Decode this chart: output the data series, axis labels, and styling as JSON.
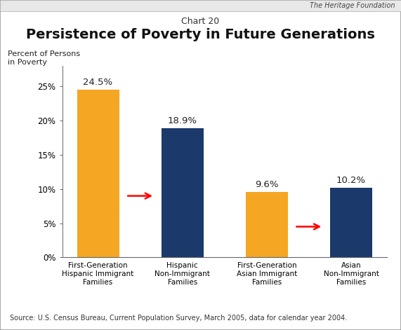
{
  "chart_label": "Chart 20",
  "title": "Persistence of Poverty in Future Generations",
  "ylabel_line1": "Percent of Persons",
  "ylabel_line2": "in Poverty",
  "categories": [
    "First-Generation\nHispanic Immigrant\nFamilies",
    "Hispanic\nNon-Immigrant\nFamilies",
    "First-Generation\nAsian Immigrant\nFamilies",
    "Asian\nNon-Immigrant\nFamilies"
  ],
  "values": [
    24.5,
    18.9,
    9.6,
    10.2
  ],
  "bar_colors": [
    "#F5A623",
    "#1B3A6B",
    "#F5A623",
    "#1B3A6B"
  ],
  "value_labels": [
    "24.5%",
    "18.9%",
    "9.6%",
    "10.2%"
  ],
  "ylim": [
    0,
    28
  ],
  "yticks": [
    0,
    5,
    10,
    15,
    20,
    25
  ],
  "ytick_labels": [
    "0%",
    "5%",
    "10%",
    "15%",
    "20%",
    "25%"
  ],
  "source_text": "Source: U.S. Census Bureau, Current Population Survey, March 2005, data for calendar year 2004.",
  "heritage_text": "The Heritage Foundation",
  "background_color": "#FFFFFF",
  "title_fontsize": 14,
  "chart_label_fontsize": 9,
  "tick_fontsize": 8.5,
  "value_fontsize": 9.5,
  "source_fontsize": 7,
  "ylabel_fontsize": 8,
  "bar_width": 0.5
}
